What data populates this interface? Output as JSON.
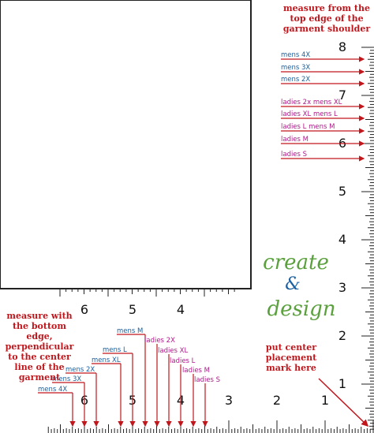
{
  "notes": {
    "top_right": "measure from the top edge of the garment shoulder",
    "bottom_left": "measure with the bottom edge, perpendicular to the center line of the garment",
    "bottom_right": "put center placement mark here"
  },
  "logo": {
    "line1": "create",
    "amp": "&",
    "line2": "design"
  },
  "vertical_ruler_numbers": [
    "8",
    "7",
    "6",
    "5",
    "4",
    "3",
    "2",
    "1"
  ],
  "horizontal_ruler_top_numbers": [
    "6",
    "5",
    "4"
  ],
  "horizontal_ruler_bottom_numbers": [
    "6",
    "5",
    "4",
    "3",
    "2",
    "1"
  ],
  "right_labels": [
    {
      "text": "mens 4X",
      "color": "#1a5fa0"
    },
    {
      "text": "mens 3X",
      "color": "#1a5fa0"
    },
    {
      "text": "mens 2X",
      "color": "#1a5fa0"
    },
    {
      "text": "ladies 2x mens XL",
      "color": "#b0188a"
    },
    {
      "text": "ladies XL mens L",
      "color": "#b0188a"
    },
    {
      "text": "ladies L mens M",
      "color": "#b0188a"
    },
    {
      "text": "ladies M",
      "color": "#b0188a"
    },
    {
      "text": "ladies S",
      "color": "#b0188a"
    }
  ],
  "bottom_labels": [
    {
      "text": "mens 4X",
      "color": "#1a5fa0"
    },
    {
      "text": "mens 3X",
      "color": "#1a5fa0"
    },
    {
      "text": "mens 2X",
      "color": "#1a5fa0"
    },
    {
      "text": "mens XL",
      "color": "#1a5fa0"
    },
    {
      "text": "mens L",
      "color": "#1a5fa0"
    },
    {
      "text": "mens M",
      "color": "#1a5fa0"
    },
    {
      "text": "ladies 2X",
      "color": "#b0188a"
    },
    {
      "text": "ladies XL",
      "color": "#b0188a"
    },
    {
      "text": "ladies L",
      "color": "#b0188a"
    },
    {
      "text": "ladies M",
      "color": "#b0188a"
    },
    {
      "text": "ladies S",
      "color": "#b0188a"
    }
  ],
  "colors": {
    "red": "#c0171d",
    "blue": "#1a5fa0",
    "magenta": "#b0188a",
    "green": "#5aa03c",
    "grey": "#b8b8b8"
  }
}
